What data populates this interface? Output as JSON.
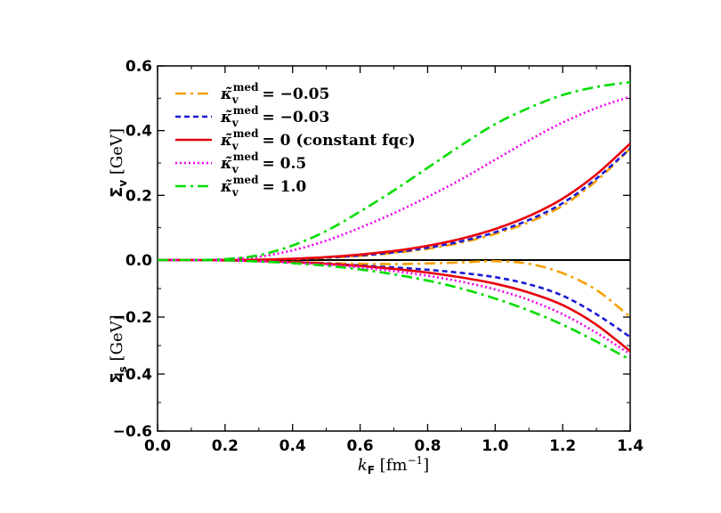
{
  "chart_data": {
    "type": "line",
    "x_axis": {
      "label_italic": "k",
      "label_sub": "F",
      "label_unit": "[fm",
      "label_sup": "−1",
      "label_close": "]",
      "range": [
        0.0,
        1.4
      ],
      "ticks": [
        "0.0",
        "0.2",
        "0.4",
        "0.6",
        "0.8",
        "1.0",
        "1.2",
        "1.4"
      ]
    },
    "panels": [
      {
        "id": "vector",
        "ylabel_main": "Σ",
        "ylabel_sub": "v",
        "ylabel_unit": "[GeV]",
        "ylim": [
          0.0,
          0.6
        ],
        "yticks": [
          "0.0",
          "0.2",
          "0.4",
          "0.6"
        ]
      },
      {
        "id": "scalar",
        "ylabel_main": "Σ",
        "ylabel_sub": "s",
        "ylabel_unit": "[GeV]",
        "ylim": [
          -0.6,
          0.0
        ],
        "yticks": [
          "−0.6",
          "−0.4",
          "−0.2"
        ]
      }
    ],
    "legend": {
      "placement": "top-left"
    },
    "x": [
      0.0,
      0.1,
      0.2,
      0.3,
      0.4,
      0.5,
      0.6,
      0.7,
      0.8,
      0.9,
      1.0,
      1.1,
      1.2,
      1.3,
      1.4
    ],
    "series": [
      {
        "label": "= −0.05",
        "color": "#f5a000",
        "dash": "12,5,3,5",
        "vector": [
          0,
          0,
          0,
          0.001,
          0.003,
          0.007,
          0.013,
          0.022,
          0.035,
          0.054,
          0.081,
          0.117,
          0.168,
          0.245,
          0.345
        ],
        "scalar": [
          0,
          0,
          -0.001,
          -0.003,
          -0.006,
          -0.01,
          -0.013,
          -0.014,
          -0.012,
          -0.008,
          -0.004,
          -0.013,
          -0.046,
          -0.105,
          -0.2
        ]
      },
      {
        "label": "= −0.03",
        "color": "#1a1ad6",
        "dash": "6,4",
        "vector": [
          0,
          0,
          0,
          0.001,
          0.003,
          0.008,
          0.014,
          0.024,
          0.038,
          0.058,
          0.086,
          0.124,
          0.176,
          0.252,
          0.345
        ],
        "scalar": [
          0,
          0,
          -0.001,
          -0.003,
          -0.007,
          -0.012,
          -0.019,
          -0.026,
          -0.034,
          -0.045,
          -0.06,
          -0.085,
          -0.125,
          -0.19,
          -0.27
        ]
      },
      {
        "label": "= 0 (constant fqc)",
        "color": "#e8000b",
        "dash": "",
        "vector": [
          0,
          0,
          0,
          0.001,
          0.004,
          0.009,
          0.017,
          0.028,
          0.044,
          0.066,
          0.096,
          0.136,
          0.19,
          0.265,
          0.36
        ],
        "scalar": [
          0,
          0,
          -0.001,
          -0.003,
          -0.007,
          -0.013,
          -0.021,
          -0.031,
          -0.044,
          -0.061,
          -0.083,
          -0.114,
          -0.158,
          -0.227,
          -0.32
        ]
      },
      {
        "label": "= 0.5",
        "color": "#ee00ee",
        "dash": "2,3",
        "vector": [
          0,
          0,
          0.002,
          0.01,
          0.03,
          0.06,
          0.1,
          0.145,
          0.195,
          0.25,
          0.31,
          0.37,
          0.425,
          0.47,
          0.505
        ],
        "scalar": [
          0,
          0,
          -0.001,
          -0.004,
          -0.009,
          -0.016,
          -0.026,
          -0.039,
          -0.055,
          -0.076,
          -0.103,
          -0.14,
          -0.19,
          -0.255,
          -0.33
        ]
      },
      {
        "label": "= 1.0",
        "color": "#00dd00",
        "dash": "12,5,3,5",
        "vector": [
          0,
          0,
          0.003,
          0.015,
          0.045,
          0.09,
          0.15,
          0.215,
          0.285,
          0.355,
          0.42,
          0.47,
          0.51,
          0.535,
          0.55
        ],
        "scalar": [
          0,
          0,
          -0.001,
          -0.005,
          -0.011,
          -0.02,
          -0.033,
          -0.05,
          -0.072,
          -0.1,
          -0.135,
          -0.177,
          -0.227,
          -0.286,
          -0.35
        ]
      }
    ],
    "legend_symbol": {
      "kappa": "κ̃",
      "sub": "v",
      "sup": "med"
    }
  }
}
